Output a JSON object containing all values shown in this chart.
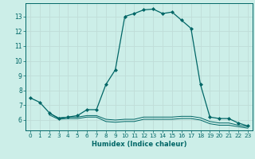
{
  "title": "",
  "xlabel": "Humidex (Indice chaleur)",
  "bg_color": "#cceee8",
  "grid_color": "#c0ddd8",
  "line_color": "#006666",
  "line1_x": [
    0,
    1,
    2,
    3,
    4,
    5,
    6,
    7,
    8,
    9,
    10,
    11,
    12,
    13,
    14,
    15,
    16,
    17,
    18,
    19,
    20,
    21,
    22,
    23
  ],
  "line1_y": [
    7.5,
    7.2,
    6.5,
    6.1,
    6.2,
    6.3,
    6.7,
    6.7,
    8.4,
    9.4,
    13.0,
    13.2,
    13.45,
    13.5,
    13.2,
    13.3,
    12.75,
    12.2,
    8.4,
    6.2,
    6.1,
    6.1,
    5.8,
    5.6
  ],
  "line2_x": [
    2,
    3,
    4,
    5,
    6,
    7,
    8,
    9,
    10,
    11,
    12,
    13,
    14,
    15,
    16,
    17,
    18,
    19,
    20,
    21,
    22,
    23
  ],
  "line2_y": [
    6.45,
    6.15,
    6.2,
    6.2,
    6.3,
    6.3,
    6.05,
    6.0,
    6.05,
    6.05,
    6.2,
    6.2,
    6.2,
    6.2,
    6.25,
    6.25,
    6.15,
    5.9,
    5.8,
    5.8,
    5.65,
    5.55
  ],
  "line3_x": [
    2,
    3,
    4,
    5,
    6,
    7,
    8,
    9,
    10,
    11,
    12,
    13,
    14,
    15,
    16,
    17,
    18,
    19,
    20,
    21,
    22,
    23
  ],
  "line3_y": [
    6.35,
    6.05,
    6.1,
    6.1,
    6.2,
    6.2,
    5.9,
    5.85,
    5.9,
    5.9,
    6.05,
    6.05,
    6.05,
    6.05,
    6.1,
    6.1,
    6.0,
    5.75,
    5.65,
    5.65,
    5.55,
    5.45
  ],
  "ylim": [
    5.3,
    13.9
  ],
  "yticks": [
    6,
    7,
    8,
    9,
    10,
    11,
    12,
    13
  ],
  "xlim": [
    -0.5,
    23.5
  ],
  "xticks": [
    0,
    1,
    2,
    3,
    4,
    5,
    6,
    7,
    8,
    9,
    10,
    11,
    12,
    13,
    14,
    15,
    16,
    17,
    18,
    19,
    20,
    21,
    22,
    23
  ]
}
